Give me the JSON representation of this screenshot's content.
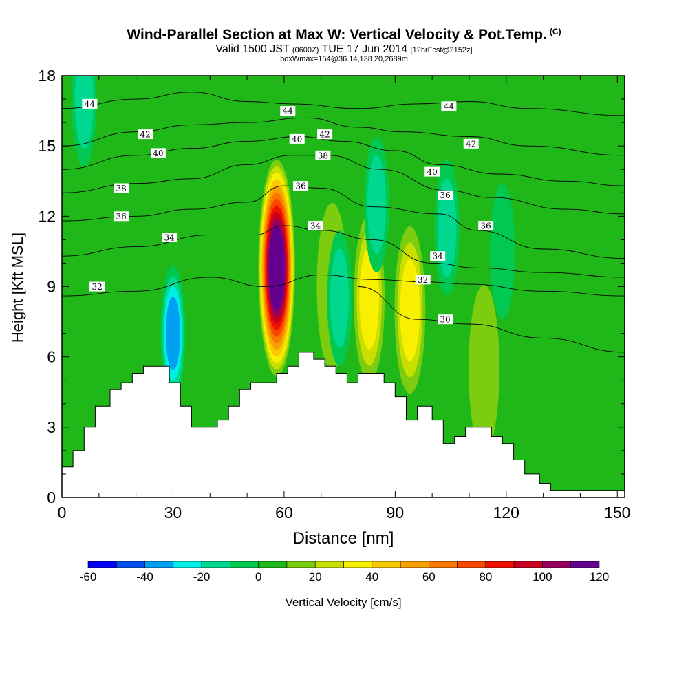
{
  "header": {
    "title": "Wind-Parallel Section at Max W: Vertical Velocity & Pot.Temp.",
    "title_suffix": "(C)",
    "valid_prefix": "Valid 1500 JST",
    "valid_utc": "(0600Z)",
    "valid_date": "TUE 17 Jun 2014",
    "forecast": "[12hrFcst@2152z]",
    "box_info": "boxWmax=154@36.14,138.20,2689m"
  },
  "chart_data": {
    "type": "heatmap",
    "xlabel": "Distance [nm]",
    "ylabel": "Height [Kft MSL]",
    "xlim": [
      0,
      152
    ],
    "ylim": [
      0,
      18
    ],
    "x_ticks": [
      0,
      30,
      60,
      90,
      120,
      150
    ],
    "y_ticks": [
      0,
      3,
      6,
      9,
      12,
      15,
      18
    ],
    "colorbar": {
      "label": "Vertical Velocity [cm/s]",
      "bounds": [
        -60,
        -50,
        -40,
        -30,
        -20,
        -10,
        0,
        10,
        20,
        30,
        40,
        50,
        60,
        70,
        80,
        90,
        100,
        110,
        120
      ],
      "tick_labels": [
        -60,
        -40,
        -20,
        0,
        20,
        40,
        60,
        80,
        100,
        120
      ],
      "colors": [
        "#0000f5",
        "#0050f0",
        "#00a0f0",
        "#00f0e8",
        "#00d890",
        "#00c850",
        "#20b818",
        "#7ccc10",
        "#c8e000",
        "#f8f000",
        "#f8c800",
        "#f8a000",
        "#f87800",
        "#f84800",
        "#f01000",
        "#c80020",
        "#980060",
        "#640090"
      ]
    },
    "background_level": "0 to 10",
    "terrain_kft": [
      [
        0,
        1.3
      ],
      [
        3,
        1.3
      ],
      [
        3,
        2.0
      ],
      [
        6,
        2.0
      ],
      [
        6,
        3.0
      ],
      [
        9,
        3.0
      ],
      [
        9,
        3.9
      ],
      [
        13,
        3.9
      ],
      [
        13,
        4.6
      ],
      [
        16,
        4.6
      ],
      [
        16,
        4.9
      ],
      [
        19,
        4.9
      ],
      [
        19,
        5.3
      ],
      [
        22,
        5.3
      ],
      [
        22,
        5.6
      ],
      [
        29,
        5.6
      ],
      [
        29,
        4.9
      ],
      [
        32,
        4.9
      ],
      [
        32,
        3.9
      ],
      [
        35,
        3.9
      ],
      [
        35,
        3.0
      ],
      [
        42,
        3.0
      ],
      [
        42,
        3.3
      ],
      [
        45,
        3.3
      ],
      [
        45,
        3.9
      ],
      [
        48,
        3.9
      ],
      [
        48,
        4.6
      ],
      [
        51,
        4.6
      ],
      [
        51,
        4.9
      ],
      [
        58,
        4.9
      ],
      [
        58,
        5.3
      ],
      [
        61,
        5.3
      ],
      [
        61,
        5.6
      ],
      [
        64,
        5.6
      ],
      [
        64,
        6.2
      ],
      [
        68,
        6.2
      ],
      [
        68,
        5.9
      ],
      [
        71,
        5.9
      ],
      [
        71,
        5.6
      ],
      [
        74,
        5.6
      ],
      [
        74,
        5.3
      ],
      [
        77,
        5.3
      ],
      [
        77,
        4.9
      ],
      [
        80,
        4.9
      ],
      [
        80,
        5.3
      ],
      [
        87,
        5.3
      ],
      [
        87,
        4.9
      ],
      [
        90,
        4.9
      ],
      [
        90,
        4.3
      ],
      [
        93,
        4.3
      ],
      [
        93,
        3.3
      ],
      [
        96,
        3.3
      ],
      [
        96,
        3.9
      ],
      [
        100,
        3.9
      ],
      [
        100,
        3.3
      ],
      [
        103,
        3.3
      ],
      [
        103,
        2.3
      ],
      [
        106,
        2.3
      ],
      [
        106,
        2.6
      ],
      [
        109,
        2.6
      ],
      [
        109,
        3.0
      ],
      [
        116,
        3.0
      ],
      [
        116,
        2.6
      ],
      [
        119,
        2.6
      ],
      [
        119,
        2.3
      ],
      [
        122,
        2.3
      ],
      [
        122,
        1.6
      ],
      [
        125,
        1.6
      ],
      [
        125,
        1.0
      ],
      [
        129,
        1.0
      ],
      [
        129,
        0.6
      ],
      [
        132,
        0.6
      ],
      [
        132,
        0.3
      ],
      [
        152,
        0.3
      ]
    ],
    "updrafts": [
      {
        "x": 58,
        "z": 9.8,
        "peak": 120
      },
      {
        "x": 83,
        "z": 8.5,
        "peak": 40
      },
      {
        "x": 94,
        "z": 8.0,
        "peak": 40
      },
      {
        "x": 73,
        "z": 9.0,
        "peak": 20
      },
      {
        "x": 114,
        "z": 5.5,
        "peak": 20
      },
      {
        "x": 30,
        "z": 15.0,
        "peak": 10
      }
    ],
    "downdrafts": [
      {
        "x": 30,
        "z": 7.0,
        "peak": -40
      },
      {
        "x": 75,
        "z": 8.5,
        "peak": -20
      },
      {
        "x": 85,
        "z": 12.5,
        "peak": -20
      },
      {
        "x": 104,
        "z": 11.5,
        "peak": -20
      },
      {
        "x": 6,
        "z": 17.0,
        "peak": -20
      },
      {
        "x": 119,
        "z": 10.5,
        "peak": -10
      }
    ],
    "isentropes": [
      {
        "label": "30",
        "points": [
          [
            80,
            9.0
          ],
          [
            96,
            7.6
          ],
          [
            110,
            7.4
          ],
          [
            130,
            6.8
          ],
          [
            152,
            6.2
          ]
        ]
      },
      {
        "label": "32",
        "points": [
          [
            0,
            8.6
          ],
          [
            20,
            8.8
          ],
          [
            40,
            9.4
          ],
          [
            55,
            9.0
          ],
          [
            70,
            9.5
          ],
          [
            84,
            9.3
          ],
          [
            98,
            9.2
          ],
          [
            110,
            9.1
          ],
          [
            130,
            8.8
          ],
          [
            152,
            8.6
          ]
        ]
      },
      {
        "label": "34",
        "points": [
          [
            0,
            10.3
          ],
          [
            20,
            10.7
          ],
          [
            40,
            11.2
          ],
          [
            52,
            11.2
          ],
          [
            60,
            11.6
          ],
          [
            70,
            11.4
          ],
          [
            84,
            11.0
          ],
          [
            100,
            10.0
          ],
          [
            112,
            9.8
          ],
          [
            130,
            9.6
          ],
          [
            152,
            9.4
          ]
        ]
      },
      {
        "label": "36",
        "points": [
          [
            0,
            11.8
          ],
          [
            20,
            12.0
          ],
          [
            35,
            12.3
          ],
          [
            50,
            12.6
          ],
          [
            60,
            13.3
          ],
          [
            70,
            13.2
          ],
          [
            84,
            12.4
          ],
          [
            102,
            12.1
          ],
          [
            112,
            11.4
          ],
          [
            130,
            10.6
          ],
          [
            152,
            10.2
          ]
        ]
      },
      {
        "label": "38",
        "points": [
          [
            0,
            13.0
          ],
          [
            20,
            13.4
          ],
          [
            35,
            13.6
          ],
          [
            50,
            14.2
          ],
          [
            62,
            14.6
          ],
          [
            72,
            14.6
          ],
          [
            86,
            14.0
          ],
          [
            104,
            13.1
          ],
          [
            116,
            12.8
          ],
          [
            136,
            12.3
          ],
          [
            152,
            12.1
          ]
        ]
      },
      {
        "label": "40",
        "points": [
          [
            0,
            14.0
          ],
          [
            20,
            14.6
          ],
          [
            35,
            14.9
          ],
          [
            50,
            15.2
          ],
          [
            64,
            15.4
          ],
          [
            76,
            15.2
          ],
          [
            90,
            14.8
          ],
          [
            102,
            14.2
          ],
          [
            118,
            13.8
          ],
          [
            136,
            13.5
          ],
          [
            152,
            13.3
          ]
        ]
      },
      {
        "label": "42",
        "points": [
          [
            0,
            15.0
          ],
          [
            20,
            15.6
          ],
          [
            35,
            15.9
          ],
          [
            50,
            16.0
          ],
          [
            66,
            16.2
          ],
          [
            80,
            15.8
          ],
          [
            92,
            15.6
          ],
          [
            110,
            15.4
          ],
          [
            126,
            15.0
          ],
          [
            152,
            14.6
          ]
        ]
      },
      {
        "label": "44",
        "points": [
          [
            0,
            16.6
          ],
          [
            20,
            17.0
          ],
          [
            35,
            17.3
          ],
          [
            50,
            16.9
          ],
          [
            62,
            16.8
          ],
          [
            80,
            16.6
          ],
          [
            96,
            16.8
          ],
          [
            110,
            16.9
          ],
          [
            126,
            16.6
          ],
          [
            152,
            16.3
          ]
        ]
      }
    ],
    "contour_labels": [
      {
        "text": "44",
        "x": 7.5,
        "z": 16.8
      },
      {
        "text": "44",
        "x": 61,
        "z": 16.5
      },
      {
        "text": "44",
        "x": 104.5,
        "z": 16.7
      },
      {
        "text": "42",
        "x": 22.5,
        "z": 15.5
      },
      {
        "text": "42",
        "x": 71,
        "z": 15.5
      },
      {
        "text": "42",
        "x": 110.5,
        "z": 15.1
      },
      {
        "text": "40",
        "x": 26,
        "z": 14.7
      },
      {
        "text": "40",
        "x": 63.5,
        "z": 15.3
      },
      {
        "text": "40",
        "x": 100,
        "z": 13.9
      },
      {
        "text": "38",
        "x": 16,
        "z": 13.2
      },
      {
        "text": "38",
        "x": 70.5,
        "z": 14.6
      },
      {
        "text": "36",
        "x": 16,
        "z": 12.0
      },
      {
        "text": "36",
        "x": 64.5,
        "z": 13.3
      },
      {
        "text": "36",
        "x": 103.5,
        "z": 12.9
      },
      {
        "text": "36",
        "x": 114.5,
        "z": 11.6
      },
      {
        "text": "34",
        "x": 29,
        "z": 11.1
      },
      {
        "text": "34",
        "x": 68.5,
        "z": 11.6
      },
      {
        "text": "34",
        "x": 101.5,
        "z": 10.3
      },
      {
        "text": "32",
        "x": 9.5,
        "z": 9.0
      },
      {
        "text": "32",
        "x": 97.5,
        "z": 9.3
      },
      {
        "text": "30",
        "x": 103.5,
        "z": 7.6
      }
    ]
  }
}
